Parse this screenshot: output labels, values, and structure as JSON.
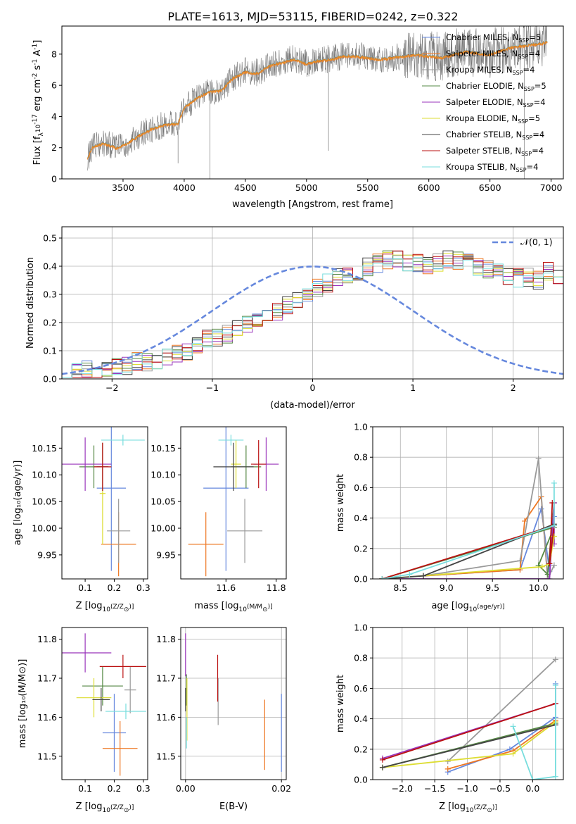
{
  "title": "PLATE=1613, MJD=53115, FIBERID=0242, z=0.322",
  "colors": [
    "#6688dd",
    "#ee7722",
    "#999999",
    "#558844",
    "#9933bb",
    "#dddd33",
    "#444444",
    "#bb1111",
    "#77dddd"
  ],
  "legend_labels": [
    "Chabrier MILES, N_SSP=5",
    "Salpeter MILES, N_SSP=4",
    "Kroupa MILES, N_SSP=4",
    "Chabrier ELODIE, N_SSP=5",
    "Salpeter ELODIE, N_SSP=4",
    "Kroupa ELODIE, N_SSP=5",
    "Chabrier STELIB, N_SSP=4",
    "Salpeter STELIB, N_SSP=4",
    "Kroupa STELIB, N_SSP=4"
  ],
  "chart_data": [
    {
      "id": "spectrum",
      "type": "line",
      "title": "PLATE=1613, MJD=53115, FIBERID=0242, z=0.322",
      "xlabel": "wavelength [Angstrom, rest frame]",
      "ylabel": "Flux [f_λ 10^-17 erg cm^-2 s^-1 A^-1]",
      "xlim": [
        3000,
        7100
      ],
      "ylim": [
        0,
        9.8
      ],
      "xticks": [
        3500,
        4000,
        4500,
        5000,
        5500,
        6000,
        6500,
        7000
      ],
      "yticks": [
        0,
        2,
        4,
        6,
        8
      ],
      "continuum": {
        "x": [
          3210,
          3250,
          3350,
          3450,
          3550,
          3650,
          3750,
          3850,
          3950,
          4000,
          4100,
          4200,
          4300,
          4400,
          4500,
          4600,
          4700,
          4800,
          4900,
          5000,
          5100,
          5200,
          5300,
          5400,
          5500,
          5600,
          5700,
          5800,
          5900,
          6000,
          6100,
          6200,
          6300,
          6400,
          6500,
          6600,
          6700,
          6800,
          6900,
          6970
        ],
        "y": [
          1.3,
          2.1,
          2.3,
          2.0,
          2.4,
          2.9,
          3.3,
          3.5,
          3.6,
          4.6,
          5.2,
          5.6,
          5.7,
          6.5,
          6.9,
          6.8,
          7.3,
          7.5,
          7.7,
          7.4,
          7.6,
          7.7,
          7.9,
          7.9,
          7.8,
          7.7,
          7.8,
          7.9,
          8.0,
          7.9,
          7.8,
          8.0,
          8.2,
          8.1,
          8.0,
          8.3,
          8.5,
          8.6,
          8.7,
          8.8
        ]
      }
    },
    {
      "id": "residuals",
      "type": "step",
      "xlabel": "(data-model)/error",
      "ylabel": "Normed distribution",
      "xlim": [
        -2.5,
        2.5
      ],
      "ylim": [
        0,
        0.54
      ],
      "xticks": [
        -2,
        -1,
        0,
        1,
        2
      ],
      "yticks": [
        0.0,
        0.1,
        0.2,
        0.3,
        0.4,
        0.5
      ],
      "bin_width": 0.1,
      "bins_start": -2.5,
      "reference_label": "N(0,1)",
      "base_hist": [
        0.02,
        0.02,
        0.03,
        0.03,
        0.04,
        0.05,
        0.05,
        0.06,
        0.06,
        0.07,
        0.08,
        0.09,
        0.1,
        0.12,
        0.14,
        0.15,
        0.16,
        0.18,
        0.2,
        0.21,
        0.22,
        0.24,
        0.26,
        0.28,
        0.3,
        0.32,
        0.34,
        0.36,
        0.37,
        0.38,
        0.4,
        0.41,
        0.42,
        0.42,
        0.41,
        0.41,
        0.4,
        0.41,
        0.42,
        0.42,
        0.42,
        0.4,
        0.39,
        0.38,
        0.37,
        0.36,
        0.36,
        0.35,
        0.38,
        0.37,
        0.35,
        0.33,
        0.31,
        0.3,
        0.29,
        0.28,
        0.26,
        0.25,
        0.23,
        0.21,
        0.2,
        0.19,
        0.18,
        0.16,
        0.14,
        0.13,
        0.11,
        0.1,
        0.09,
        0.08,
        0.07,
        0.06,
        0.05,
        0.05,
        0.04,
        0.04,
        0.04,
        0.03,
        0.03,
        0.03,
        0.03,
        0.03,
        0.02,
        0.02,
        0.02,
        0.02,
        0.02,
        0.02,
        0.02,
        0.02
      ]
    },
    {
      "id": "age_vs_Z",
      "type": "errorbar",
      "xlabel": "Z [log10(Z/Z☉)]",
      "ylabel": "age [log10(age/yr)]",
      "xlim": [
        0.02,
        0.315
      ],
      "ylim": [
        9.905,
        10.19
      ],
      "xticks": [
        0.1,
        0.2,
        0.3
      ],
      "yticks": [
        9.95,
        10.0,
        10.05,
        10.1,
        10.15
      ],
      "points": [
        {
          "x": 0.19,
          "xerr": 0.05,
          "y": 10.075,
          "yerr": 0.155
        },
        {
          "x": 0.215,
          "xerr": 0.06,
          "y": 9.97,
          "yerr": 0.06
        },
        {
          "x": 0.215,
          "xerr": 0.04,
          "y": 9.995,
          "yerr": 0.06
        },
        {
          "x": 0.13,
          "xerr": 0.05,
          "y": 10.115,
          "yerr": 0.04
        },
        {
          "x": 0.1,
          "xerr": 0.09,
          "y": 10.12,
          "yerr": 0.05
        },
        {
          "x": 0.16,
          "xerr": 0.01,
          "y": 10.065,
          "yerr": 0.095
        },
        {
          "x": 0.16,
          "xerr": 0.02,
          "y": 10.115,
          "yerr": 0.045
        },
        {
          "x": 0.16,
          "xerr": 0.03,
          "y": 10.115,
          "yerr": 0.045
        },
        {
          "x": 0.23,
          "xerr": 0.075,
          "y": 10.165,
          "yerr": 0.01
        }
      ]
    },
    {
      "id": "age_vs_mass",
      "type": "errorbar",
      "xlabel": "mass [log10(M/M☉)]",
      "ylabel": "",
      "xlim": [
        11.42,
        11.84
      ],
      "ylim": [
        9.905,
        10.19
      ],
      "xticks": [
        11.6,
        11.8
      ],
      "yticks": [
        9.95,
        10.0,
        10.05,
        10.1,
        10.15
      ],
      "points": [
        {
          "x": 11.6,
          "xerr": 0.09,
          "y": 10.075,
          "yerr": 0.155
        },
        {
          "x": 11.52,
          "xerr": 0.07,
          "y": 9.97,
          "yerr": 0.06
        },
        {
          "x": 11.675,
          "xerr": 0.07,
          "y": 9.995,
          "yerr": 0.06
        },
        {
          "x": 11.68,
          "xerr": 0.06,
          "y": 10.115,
          "yerr": 0.04
        },
        {
          "x": 11.76,
          "xerr": 0.05,
          "y": 10.12,
          "yerr": 0.05
        },
        {
          "x": 11.64,
          "xerr": 0.02,
          "y": 10.12,
          "yerr": 0.045
        },
        {
          "x": 11.63,
          "xerr": 0.08,
          "y": 10.115,
          "yerr": 0.045
        },
        {
          "x": 11.73,
          "xerr": 0.03,
          "y": 10.12,
          "yerr": 0.045
        },
        {
          "x": 11.62,
          "xerr": 0.05,
          "y": 10.165,
          "yerr": 0.01
        }
      ]
    },
    {
      "id": "weight_vs_age",
      "type": "line",
      "xlabel": "age [log10(age/yr)]",
      "ylabel": "mass weight",
      "xlim": [
        8.2,
        10.27
      ],
      "ylim": [
        0,
        1.0
      ],
      "xticks": [
        8.5,
        9.0,
        9.5,
        10.0
      ],
      "yticks": [
        0.0,
        0.2,
        0.4,
        0.6,
        0.8,
        1.0
      ],
      "series": [
        {
          "x": [
            8.75,
            9.8,
            10.03,
            10.12,
            10.17
          ],
          "y": [
            0.02,
            0.06,
            0.46,
            0.05,
            0.41
          ]
        },
        {
          "x": [
            8.75,
            9.8,
            9.85,
            10.03,
            10.1
          ],
          "y": [
            0.02,
            0.06,
            0.38,
            0.54,
            0.0
          ]
        },
        {
          "x": [
            8.75,
            9.8,
            10.0,
            10.1,
            10.17
          ],
          "y": [
            0.02,
            0.12,
            0.79,
            0.0,
            0.09
          ]
        },
        {
          "x": [
            8.3,
            10.17,
            10.0,
            10.1,
            10.17
          ],
          "y": [
            0.0,
            0.34,
            0.09,
            0.03,
            0.5
          ]
        },
        {
          "x": [
            8.3,
            10.12,
            10.17,
            10.17
          ],
          "y": [
            0.0,
            0.0,
            0.5,
            0.23
          ]
        },
        {
          "x": [
            8.3,
            10.04,
            10.12,
            10.17
          ],
          "y": [
            0.0,
            0.08,
            0.1,
            0.28
          ]
        },
        {
          "x": [
            8.3,
            8.75,
            10.17
          ],
          "y": [
            0.0,
            0.02,
            0.36
          ]
        },
        {
          "x": [
            8.3,
            10.17,
            10.12,
            10.15
          ],
          "y": [
            0.0,
            0.35,
            0.1,
            0.5
          ]
        },
        {
          "x": [
            8.3,
            8.6,
            10.17,
            10.17
          ],
          "y": [
            0.0,
            0.03,
            0.35,
            0.63
          ]
        }
      ]
    },
    {
      "id": "mass_vs_Z",
      "type": "errorbar",
      "xlabel": "Z [log10(Z/Z☉)]",
      "ylabel": "mass [log10(M/M☉)]",
      "xlim": [
        0.02,
        0.315
      ],
      "ylim": [
        11.44,
        11.83
      ],
      "xticks": [
        0.1,
        0.2,
        0.3
      ],
      "yticks": [
        11.5,
        11.6,
        11.7,
        11.8
      ],
      "points": [
        {
          "x": 0.2,
          "xerr": 0.04,
          "y": 11.56,
          "yerr": 0.1
        },
        {
          "x": 0.22,
          "xerr": 0.06,
          "y": 11.52,
          "yerr": 0.07
        },
        {
          "x": 0.255,
          "xerr": 0.02,
          "y": 11.67,
          "yerr": 0.06
        },
        {
          "x": 0.16,
          "xerr": 0.07,
          "y": 11.68,
          "yerr": 0.05
        },
        {
          "x": 0.1,
          "xerr": 0.09,
          "y": 11.765,
          "yerr": 0.05
        },
        {
          "x": 0.13,
          "xerr": 0.06,
          "y": 11.65,
          "yerr": 0.05
        },
        {
          "x": 0.155,
          "xerr": 0.03,
          "y": 11.645,
          "yerr": 0.03
        },
        {
          "x": 0.23,
          "xerr": 0.08,
          "y": 11.73,
          "yerr": 0.03
        },
        {
          "x": 0.24,
          "xerr": 0.07,
          "y": 11.615,
          "yerr": 0.02
        }
      ]
    },
    {
      "id": "mass_vs_EBV",
      "type": "errorbar",
      "xlabel": "E(B-V)",
      "ylabel": "",
      "xlim": [
        -0.001,
        0.021
      ],
      "ylim": [
        11.44,
        11.83
      ],
      "xticks": [
        0.0,
        0.02
      ],
      "yticks": [
        11.5,
        11.6,
        11.7,
        11.8
      ],
      "points": [
        {
          "x": 0.02,
          "y": 11.56,
          "yerr": 0.1
        },
        {
          "x": 0.0165,
          "y": 11.555,
          "yerr": 0.09
        },
        {
          "x": 0.0068,
          "y": 11.64,
          "yerr": 0.06
        },
        {
          "x": 0.0002,
          "y": 11.67,
          "yerr": 0.04
        },
        {
          "x": 0.0,
          "y": 11.76,
          "yerr": 0.055
        },
        {
          "x": 0.0003,
          "y": 11.62,
          "yerr": 0.08
        },
        {
          "x": 0.0,
          "y": 11.645,
          "yerr": 0.03
        },
        {
          "x": 0.0067,
          "y": 11.7,
          "yerr": 0.06
        },
        {
          "x": 0.0002,
          "y": 11.56,
          "yerr": 0.04
        }
      ]
    },
    {
      "id": "weight_vs_Z",
      "type": "line",
      "xlabel": "Z [log10(Z/Z☉)]",
      "ylabel": "mass weight",
      "xlim": [
        -2.45,
        0.47
      ],
      "ylim": [
        0,
        1.0
      ],
      "xticks": [
        -2.0,
        -1.5,
        -1.0,
        -0.5,
        0.0
      ],
      "yticks": [
        0.0,
        0.2,
        0.4,
        0.6,
        0.8,
        1.0
      ],
      "series": [
        {
          "x": [
            -1.3,
            -0.35,
            0.35,
            0.35
          ],
          "y": [
            0.05,
            0.2,
            0.41,
            0.63
          ]
        },
        {
          "x": [
            -1.3,
            -0.3,
            0.35
          ],
          "y": [
            0.07,
            0.19,
            0.39
          ]
        },
        {
          "x": [
            -1.3,
            0.35
          ],
          "y": [
            0.12,
            0.79
          ]
        },
        {
          "x": [
            -2.3,
            0.35
          ],
          "y": [
            0.08,
            0.37
          ]
        },
        {
          "x": [
            -2.3,
            0.35
          ],
          "y": [
            0.14,
            0.5
          ]
        },
        {
          "x": [
            -2.3,
            -0.3,
            0.35
          ],
          "y": [
            0.08,
            0.17,
            0.38
          ]
        },
        {
          "x": [
            -2.3,
            0.35
          ],
          "y": [
            0.08,
            0.36
          ]
        },
        {
          "x": [
            -2.3,
            0.35
          ],
          "y": [
            0.13,
            0.5
          ]
        },
        {
          "x": [
            -0.3,
            0.0,
            0.35,
            0.35
          ],
          "y": [
            0.35,
            0.0,
            0.02,
            0.62
          ]
        }
      ]
    }
  ]
}
